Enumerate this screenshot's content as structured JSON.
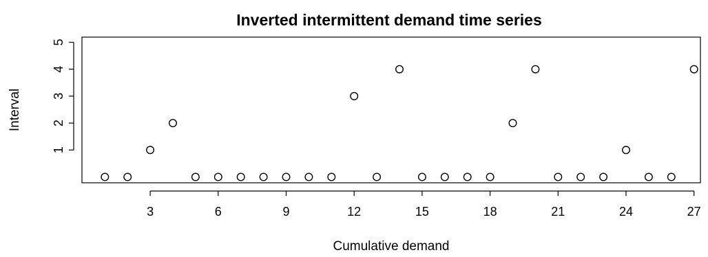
{
  "chart_data": {
    "type": "scatter",
    "title": "Inverted intermittent demand time series",
    "xlabel": "Cumulative demand",
    "ylabel": "Interval",
    "x": [
      1,
      2,
      3,
      4,
      5,
      6,
      7,
      8,
      9,
      10,
      11,
      12,
      13,
      14,
      15,
      16,
      17,
      18,
      19,
      20,
      21,
      22,
      23,
      24,
      25,
      26,
      27
    ],
    "y": [
      0,
      0,
      1,
      2,
      0,
      0,
      0,
      0,
      0,
      0,
      0,
      3,
      0,
      4,
      0,
      0,
      0,
      0,
      2,
      4,
      0,
      0,
      0,
      1,
      0,
      0,
      4
    ],
    "xlim": [
      0,
      27.4
    ],
    "ylim": [
      0,
      5
    ],
    "xticks": [
      "3",
      "6",
      "9",
      "12",
      "15",
      "18",
      "21",
      "24",
      "27"
    ],
    "yticks": [
      "1",
      "2",
      "3",
      "4",
      "5"
    ],
    "marker": "open-circle",
    "grid": false,
    "colors": {
      "points": "#000000",
      "background": "#ffffff"
    }
  }
}
